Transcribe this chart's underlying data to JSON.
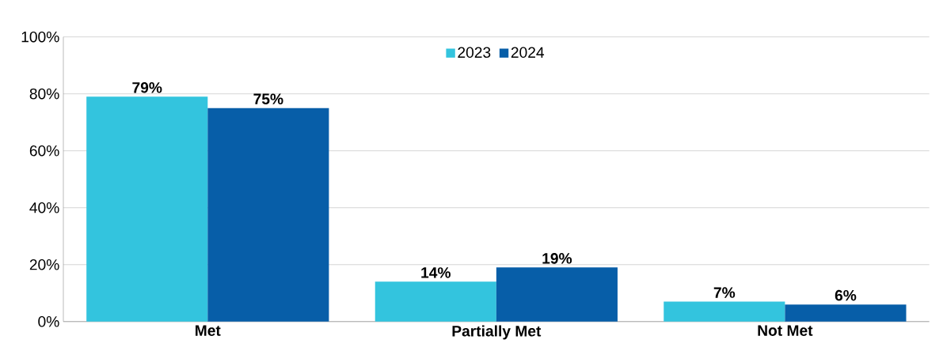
{
  "chart_data": {
    "type": "bar",
    "categories": [
      "Met",
      "Partially Met",
      "Not Met"
    ],
    "series": [
      {
        "name": "2023",
        "color": "#33c4de",
        "values": [
          79,
          14,
          7
        ],
        "value_labels": [
          "79%",
          "14%",
          "7%"
        ]
      },
      {
        "name": "2024",
        "color": "#075ea8",
        "values": [
          75,
          19,
          6
        ],
        "value_labels": [
          "75%",
          "19%",
          "6%"
        ]
      }
    ],
    "ylim": [
      0,
      100
    ],
    "yticks": [
      {
        "value": 0,
        "label": "0%"
      },
      {
        "value": 20,
        "label": "20%"
      },
      {
        "value": 40,
        "label": "40%"
      },
      {
        "value": 60,
        "label": "60%"
      },
      {
        "value": 80,
        "label": "80%"
      },
      {
        "value": 100,
        "label": "100%"
      }
    ],
    "grid": "y",
    "legend": "top"
  }
}
